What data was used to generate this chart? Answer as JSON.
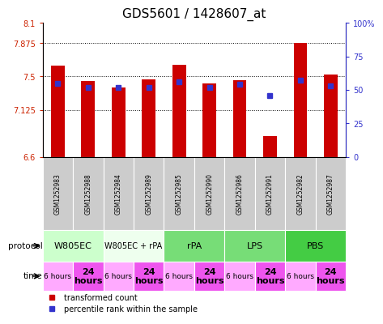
{
  "title": "GDS5601 / 1428607_at",
  "samples": [
    "GSM1252983",
    "GSM1252988",
    "GSM1252984",
    "GSM1252989",
    "GSM1252985",
    "GSM1252990",
    "GSM1252986",
    "GSM1252991",
    "GSM1252982",
    "GSM1252987"
  ],
  "bar_values": [
    7.62,
    7.45,
    7.38,
    7.47,
    7.63,
    7.42,
    7.46,
    6.83,
    7.88,
    7.52
  ],
  "percentile_values": [
    55,
    52,
    52,
    52,
    56,
    52,
    54,
    46,
    57,
    53
  ],
  "ylim_left": [
    6.6,
    8.1
  ],
  "ylim_right": [
    0,
    100
  ],
  "yticks_left": [
    6.6,
    7.125,
    7.5,
    7.875,
    8.1
  ],
  "ytick_labels_left": [
    "6.6",
    "7.125",
    "7.5",
    "7.875",
    "8.1"
  ],
  "yticks_right": [
    0,
    25,
    50,
    75,
    100
  ],
  "ytick_labels_right": [
    "0",
    "25",
    "50",
    "75",
    "100%"
  ],
  "dotted_lines": [
    7.125,
    7.5,
    7.875
  ],
  "bar_color": "#CC0000",
  "percentile_color": "#3333CC",
  "bar_width": 0.45,
  "protocol_configs": [
    {
      "label": "W805EC",
      "start": 0,
      "end": 2,
      "color": "#ccffcc",
      "fontsize": 8
    },
    {
      "label": "W805EC + rPA",
      "start": 2,
      "end": 4,
      "color": "#eeffee",
      "fontsize": 7
    },
    {
      "label": "rPA",
      "start": 4,
      "end": 6,
      "color": "#77dd77",
      "fontsize": 8
    },
    {
      "label": "LPS",
      "start": 6,
      "end": 8,
      "color": "#77dd77",
      "fontsize": 8
    },
    {
      "label": "PBS",
      "start": 8,
      "end": 10,
      "color": "#44cc44",
      "fontsize": 8
    }
  ],
  "time_configs": [
    {
      "label": "6 hours",
      "start": 0,
      "end": 1,
      "color": "#ffaaff",
      "bold": false
    },
    {
      "label": "24\nhours",
      "start": 1,
      "end": 2,
      "color": "#ee55ee",
      "bold": true
    },
    {
      "label": "6 hours",
      "start": 2,
      "end": 3,
      "color": "#ffaaff",
      "bold": false
    },
    {
      "label": "24\nhours",
      "start": 3,
      "end": 4,
      "color": "#ee55ee",
      "bold": true
    },
    {
      "label": "6 hours",
      "start": 4,
      "end": 5,
      "color": "#ffaaff",
      "bold": false
    },
    {
      "label": "24\nhours",
      "start": 5,
      "end": 6,
      "color": "#ee55ee",
      "bold": true
    },
    {
      "label": "6 hours",
      "start": 6,
      "end": 7,
      "color": "#ffaaff",
      "bold": false
    },
    {
      "label": "24\nhours",
      "start": 7,
      "end": 8,
      "color": "#ee55ee",
      "bold": true
    },
    {
      "label": "6 hours",
      "start": 8,
      "end": 9,
      "color": "#ffaaff",
      "bold": false
    },
    {
      "label": "24\nhours",
      "start": 9,
      "end": 10,
      "color": "#ee55ee",
      "bold": true
    }
  ],
  "legend_items": [
    {
      "label": "transformed count",
      "color": "#CC0000"
    },
    {
      "label": "percentile rank within the sample",
      "color": "#3333CC"
    }
  ],
  "background_color": "#ffffff",
  "sample_bg_color": "#cccccc",
  "title_fontsize": 11,
  "left_color": "#CC2200",
  "right_color": "#3333CC"
}
